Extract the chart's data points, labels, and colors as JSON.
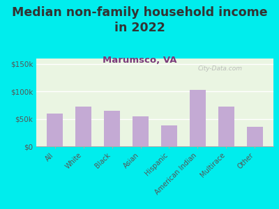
{
  "title": "Median non-family household income\nin 2022",
  "subtitle": "Marumsco, VA",
  "categories": [
    "All",
    "White",
    "Black",
    "Asian",
    "Hispanic",
    "American Indian",
    "Multirace",
    "Other"
  ],
  "values": [
    60000,
    72000,
    65000,
    55000,
    38000,
    103000,
    73000,
    35000
  ],
  "bar_color": "#c4aad4",
  "background_outer": "#00eded",
  "background_inner": "#eaf5e2",
  "title_color": "#333333",
  "subtitle_color": "#7a3a7a",
  "ytick_labels": [
    "$0",
    "$50k",
    "$100k",
    "$150k"
  ],
  "ytick_values": [
    0,
    50000,
    100000,
    150000
  ],
  "ylim": [
    0,
    160000
  ],
  "watermark": "City-Data.com",
  "title_fontsize": 12.5,
  "subtitle_fontsize": 9.5
}
